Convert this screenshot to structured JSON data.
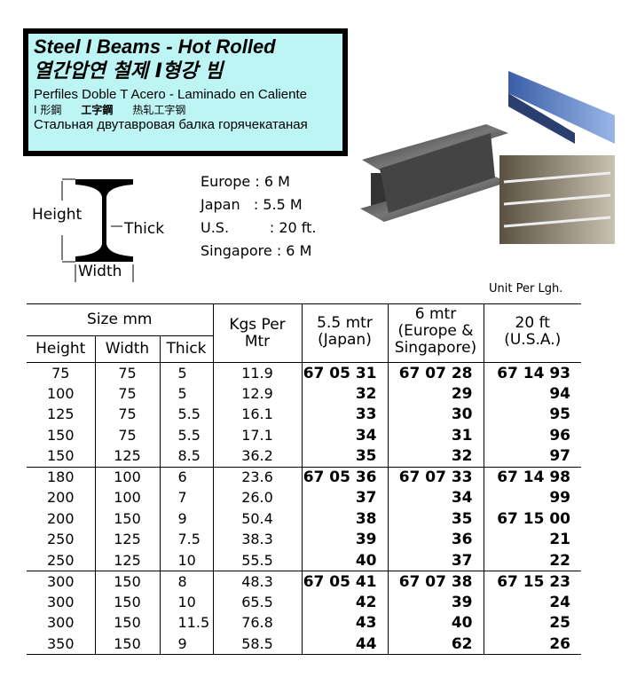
{
  "header": {
    "title_en": "Steel I Beams - Hot Rolled",
    "title_ko": "열간압연 철제 I형강 빔",
    "title_es": "Perfiles Doble T Acero - Laminado en Caliente",
    "title_cjk": [
      "I 形鋼",
      "工字鋼",
      "热轧工字钢"
    ],
    "title_ru": "Стальная двутавровая балка горячекатаная"
  },
  "diagram": {
    "height": "Height",
    "thick": "Thick",
    "width": "Width"
  },
  "lengths": [
    {
      "region": "Europe",
      "sep": ":",
      "value": "6 M"
    },
    {
      "region": "Japan",
      "sep": ":",
      "value": "5.5 M"
    },
    {
      "region": "U.S.",
      "sep": ":",
      "value": "20 ft."
    },
    {
      "region": "Singapore",
      "sep": ":",
      "value": "6 M"
    }
  ],
  "unit_note": "Unit Per Lgh.",
  "table": {
    "headers": {
      "size": "Size mm",
      "height": "Height",
      "width": "Width",
      "thick": "Thick",
      "kgs": "Kgs Per Mtr",
      "japan": "5.5 mtr (Japan)",
      "europe": "6 mtr (Europe & Singapore)",
      "usa": "20 ft (U.S.A.)"
    },
    "groups": [
      [
        [
          "75",
          "75",
          "5",
          "11.9",
          "67 05 31",
          "67 07 28",
          "67 14 93"
        ],
        [
          "100",
          "75",
          "5",
          "12.9",
          "32",
          "29",
          "94"
        ],
        [
          "125",
          "75",
          "5.5",
          "16.1",
          "33",
          "30",
          "95"
        ],
        [
          "150",
          "75",
          "5.5",
          "17.1",
          "34",
          "31",
          "96"
        ],
        [
          "150",
          "125",
          "8.5",
          "36.2",
          "35",
          "32",
          "97"
        ]
      ],
      [
        [
          "180",
          "100",
          "6",
          "23.6",
          "67 05 36",
          "67 07 33",
          "67 14 98"
        ],
        [
          "200",
          "100",
          "7",
          "26.0",
          "37",
          "34",
          "99"
        ],
        [
          "200",
          "150",
          "9",
          "50.4",
          "38",
          "35",
          "67 15 00"
        ],
        [
          "250",
          "125",
          "7.5",
          "38.3",
          "39",
          "36",
          "21"
        ],
        [
          "250",
          "125",
          "10",
          "55.5",
          "40",
          "37",
          "22"
        ]
      ],
      [
        [
          "300",
          "150",
          "8",
          "48.3",
          "67 05 41",
          "67 07 38",
          "67 15 23"
        ],
        [
          "300",
          "150",
          "10",
          "65.5",
          "42",
          "39",
          "24"
        ],
        [
          "300",
          "150",
          "11.5",
          "76.8",
          "43",
          "40",
          "25"
        ],
        [
          "350",
          "150",
          "9",
          "58.5",
          "44",
          "62",
          "26"
        ]
      ]
    ]
  }
}
